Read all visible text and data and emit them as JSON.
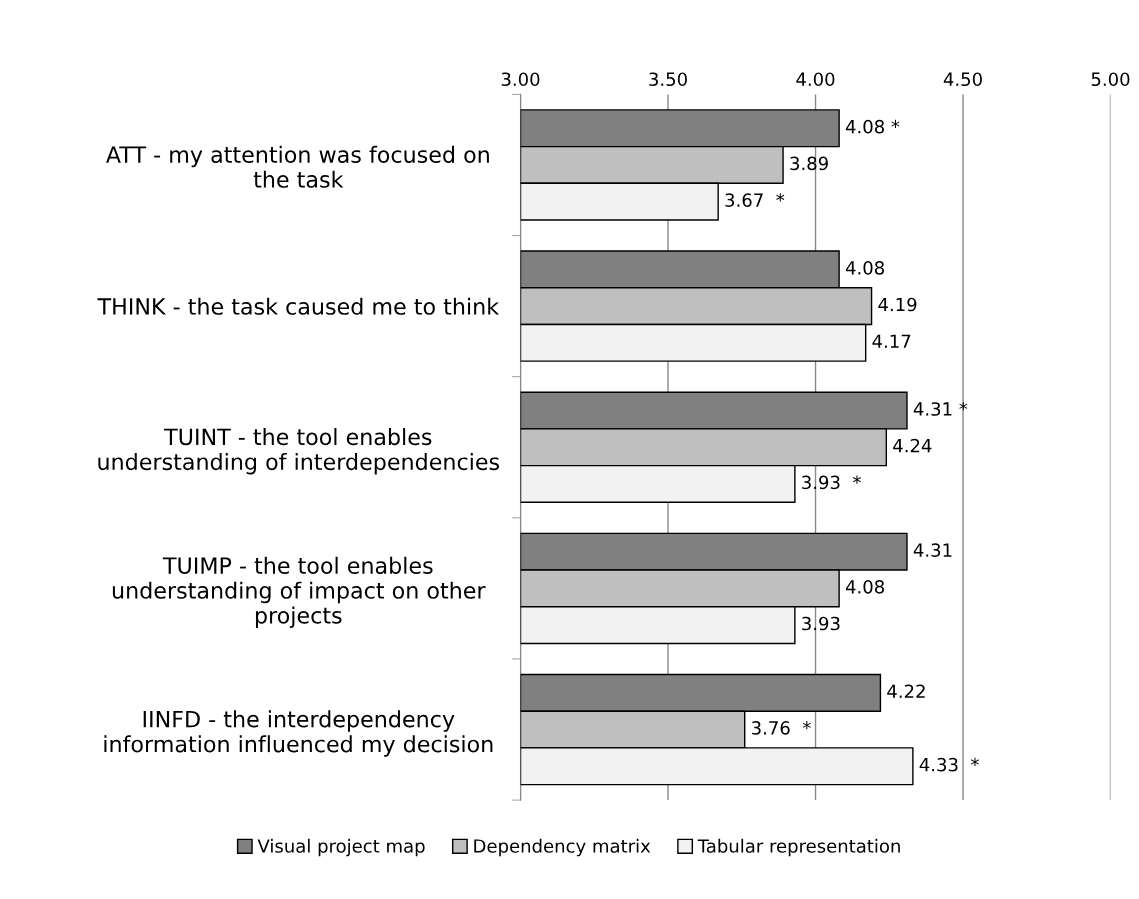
{
  "chart_data": {
    "type": "bar",
    "orientation": "horizontal",
    "categories": [
      "ATT - my attention was focused on\nthe task",
      "THINK - the task caused me to think",
      "TUINT - the tool enables\nunderstanding of interdependencies",
      "TUIMP - the tool enables\nunderstanding of impact on other\nprojects",
      "IINFD - the interdependency\ninformation influenced my decision"
    ],
    "series": [
      {
        "name": "Visual project map",
        "color": "#808080",
        "values": [
          4.08,
          4.08,
          4.31,
          4.31,
          4.22
        ],
        "value_labels": [
          "4.08 *",
          "4.08",
          "4.31 *",
          "4.31",
          "4.22"
        ]
      },
      {
        "name": "Dependency matrix",
        "color": "#bfbfbf",
        "values": [
          3.89,
          4.19,
          4.24,
          4.08,
          3.76
        ],
        "value_labels": [
          "3.89",
          "4.19",
          "4.24",
          "4.08",
          "3.76  *"
        ]
      },
      {
        "name": "Tabular representation",
        "color": "#f2f2f2",
        "values": [
          3.67,
          4.17,
          3.93,
          3.93,
          4.33
        ],
        "value_labels": [
          "3.67  *",
          "4.17",
          "3.93  *",
          "3.93",
          "4.33  *"
        ]
      }
    ],
    "xlim": [
      3,
      5
    ],
    "xticks": [
      {
        "value": 3,
        "label": "3.00"
      },
      {
        "value": 3.5,
        "label": "3.50"
      },
      {
        "value": 4,
        "label": "4.00"
      },
      {
        "value": 4.5,
        "label": "4.50"
      },
      {
        "value": 5,
        "label": "5.00"
      }
    ],
    "grid": "x",
    "legend": "bottom"
  }
}
